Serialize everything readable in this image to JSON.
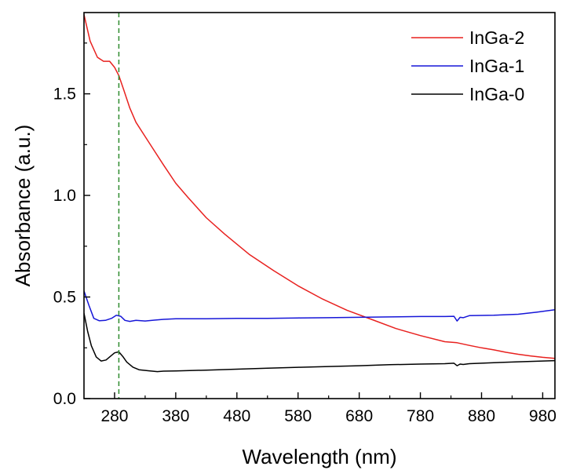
{
  "chart_data": {
    "type": "line",
    "title": "",
    "xlabel": "Wavelength (nm)",
    "ylabel": "Absorbance (a.u.)",
    "xlim": [
      230,
      1000
    ],
    "ylim": [
      0.0,
      1.9
    ],
    "xticks": [
      280,
      380,
      480,
      580,
      680,
      780,
      880,
      980
    ],
    "xtick_labels": [
      "280",
      "380",
      "480",
      "580",
      "680",
      "780",
      "880",
      "980"
    ],
    "yticks": [
      0.0,
      0.5,
      1.0,
      1.5
    ],
    "ytick_labels": [
      "0.0",
      "0.5",
      "1.0",
      "1.5"
    ],
    "grid": false,
    "legend_position": "top-right",
    "reference_line": {
      "x": 287,
      "style": "dashed",
      "color": "#2e8b2e"
    },
    "series": [
      {
        "name": "InGa-2",
        "color": "#e8211f",
        "x": [
          230,
          240,
          252,
          262,
          272,
          280,
          287,
          295,
          305,
          315,
          330,
          345,
          360,
          380,
          400,
          430,
          460,
          500,
          540,
          580,
          620,
          660,
          700,
          740,
          780,
          820,
          840,
          860,
          880,
          900,
          920,
          940,
          960,
          980,
          1000
        ],
        "y": [
          1.89,
          1.76,
          1.68,
          1.66,
          1.66,
          1.63,
          1.59,
          1.52,
          1.43,
          1.36,
          1.29,
          1.22,
          1.15,
          1.06,
          0.99,
          0.89,
          0.81,
          0.71,
          0.63,
          0.555,
          0.49,
          0.435,
          0.39,
          0.345,
          0.31,
          0.28,
          0.275,
          0.262,
          0.25,
          0.24,
          0.228,
          0.218,
          0.21,
          0.203,
          0.198
        ]
      },
      {
        "name": "InGa-1",
        "color": "#1616d8",
        "x": [
          230,
          238,
          246,
          255,
          265,
          275,
          283,
          290,
          297,
          305,
          315,
          330,
          345,
          360,
          380,
          430,
          480,
          530,
          580,
          630,
          680,
          730,
          780,
          820,
          835,
          840,
          845,
          850,
          860,
          900,
          940,
          970,
          1000
        ],
        "y": [
          0.53,
          0.46,
          0.395,
          0.383,
          0.385,
          0.395,
          0.41,
          0.405,
          0.385,
          0.38,
          0.385,
          0.382,
          0.386,
          0.39,
          0.393,
          0.393,
          0.395,
          0.395,
          0.397,
          0.398,
          0.4,
          0.402,
          0.404,
          0.404,
          0.405,
          0.382,
          0.4,
          0.398,
          0.408,
          0.41,
          0.415,
          0.425,
          0.437
        ]
      },
      {
        "name": "InGa-0",
        "color": "#000000",
        "x": [
          230,
          236,
          242,
          250,
          258,
          266,
          274,
          280,
          287,
          294,
          300,
          310,
          320,
          335,
          350,
          360,
          380,
          430,
          480,
          530,
          580,
          630,
          680,
          730,
          780,
          820,
          835,
          840,
          845,
          850,
          860,
          900,
          940,
          970,
          1000
        ],
        "y": [
          0.42,
          0.33,
          0.26,
          0.205,
          0.185,
          0.19,
          0.21,
          0.225,
          0.23,
          0.205,
          0.18,
          0.155,
          0.142,
          0.137,
          0.133,
          0.135,
          0.136,
          0.14,
          0.145,
          0.15,
          0.154,
          0.158,
          0.162,
          0.167,
          0.17,
          0.172,
          0.174,
          0.162,
          0.17,
          0.168,
          0.172,
          0.177,
          0.181,
          0.184,
          0.187
        ]
      }
    ]
  }
}
